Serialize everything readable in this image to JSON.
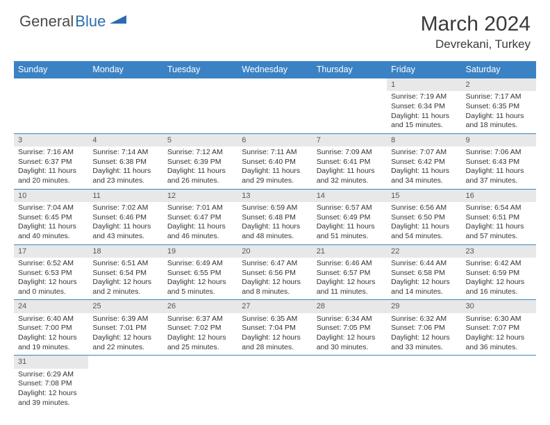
{
  "logo": {
    "part1": "General",
    "part2": "Blue"
  },
  "header": {
    "title": "March 2024",
    "location": "Devrekani, Turkey"
  },
  "colors": {
    "header_bg": "#3b82c4",
    "header_text": "#ffffff",
    "daynum_bg": "#e8e8e8",
    "border": "#3b82c4",
    "text": "#333333",
    "logo_gray": "#4a4a4a",
    "logo_blue": "#2b6cb0"
  },
  "weekdays": [
    "Sunday",
    "Monday",
    "Tuesday",
    "Wednesday",
    "Thursday",
    "Friday",
    "Saturday"
  ],
  "weeks": [
    [
      {
        "empty": true
      },
      {
        "empty": true
      },
      {
        "empty": true
      },
      {
        "empty": true
      },
      {
        "empty": true
      },
      {
        "day": "1",
        "sunrise": "Sunrise: 7:19 AM",
        "sunset": "Sunset: 6:34 PM",
        "daylight1": "Daylight: 11 hours",
        "daylight2": "and 15 minutes."
      },
      {
        "day": "2",
        "sunrise": "Sunrise: 7:17 AM",
        "sunset": "Sunset: 6:35 PM",
        "daylight1": "Daylight: 11 hours",
        "daylight2": "and 18 minutes."
      }
    ],
    [
      {
        "day": "3",
        "sunrise": "Sunrise: 7:16 AM",
        "sunset": "Sunset: 6:37 PM",
        "daylight1": "Daylight: 11 hours",
        "daylight2": "and 20 minutes."
      },
      {
        "day": "4",
        "sunrise": "Sunrise: 7:14 AM",
        "sunset": "Sunset: 6:38 PM",
        "daylight1": "Daylight: 11 hours",
        "daylight2": "and 23 minutes."
      },
      {
        "day": "5",
        "sunrise": "Sunrise: 7:12 AM",
        "sunset": "Sunset: 6:39 PM",
        "daylight1": "Daylight: 11 hours",
        "daylight2": "and 26 minutes."
      },
      {
        "day": "6",
        "sunrise": "Sunrise: 7:11 AM",
        "sunset": "Sunset: 6:40 PM",
        "daylight1": "Daylight: 11 hours",
        "daylight2": "and 29 minutes."
      },
      {
        "day": "7",
        "sunrise": "Sunrise: 7:09 AM",
        "sunset": "Sunset: 6:41 PM",
        "daylight1": "Daylight: 11 hours",
        "daylight2": "and 32 minutes."
      },
      {
        "day": "8",
        "sunrise": "Sunrise: 7:07 AM",
        "sunset": "Sunset: 6:42 PM",
        "daylight1": "Daylight: 11 hours",
        "daylight2": "and 34 minutes."
      },
      {
        "day": "9",
        "sunrise": "Sunrise: 7:06 AM",
        "sunset": "Sunset: 6:43 PM",
        "daylight1": "Daylight: 11 hours",
        "daylight2": "and 37 minutes."
      }
    ],
    [
      {
        "day": "10",
        "sunrise": "Sunrise: 7:04 AM",
        "sunset": "Sunset: 6:45 PM",
        "daylight1": "Daylight: 11 hours",
        "daylight2": "and 40 minutes."
      },
      {
        "day": "11",
        "sunrise": "Sunrise: 7:02 AM",
        "sunset": "Sunset: 6:46 PM",
        "daylight1": "Daylight: 11 hours",
        "daylight2": "and 43 minutes."
      },
      {
        "day": "12",
        "sunrise": "Sunrise: 7:01 AM",
        "sunset": "Sunset: 6:47 PM",
        "daylight1": "Daylight: 11 hours",
        "daylight2": "and 46 minutes."
      },
      {
        "day": "13",
        "sunrise": "Sunrise: 6:59 AM",
        "sunset": "Sunset: 6:48 PM",
        "daylight1": "Daylight: 11 hours",
        "daylight2": "and 48 minutes."
      },
      {
        "day": "14",
        "sunrise": "Sunrise: 6:57 AM",
        "sunset": "Sunset: 6:49 PM",
        "daylight1": "Daylight: 11 hours",
        "daylight2": "and 51 minutes."
      },
      {
        "day": "15",
        "sunrise": "Sunrise: 6:56 AM",
        "sunset": "Sunset: 6:50 PM",
        "daylight1": "Daylight: 11 hours",
        "daylight2": "and 54 minutes."
      },
      {
        "day": "16",
        "sunrise": "Sunrise: 6:54 AM",
        "sunset": "Sunset: 6:51 PM",
        "daylight1": "Daylight: 11 hours",
        "daylight2": "and 57 minutes."
      }
    ],
    [
      {
        "day": "17",
        "sunrise": "Sunrise: 6:52 AM",
        "sunset": "Sunset: 6:53 PM",
        "daylight1": "Daylight: 12 hours",
        "daylight2": "and 0 minutes."
      },
      {
        "day": "18",
        "sunrise": "Sunrise: 6:51 AM",
        "sunset": "Sunset: 6:54 PM",
        "daylight1": "Daylight: 12 hours",
        "daylight2": "and 2 minutes."
      },
      {
        "day": "19",
        "sunrise": "Sunrise: 6:49 AM",
        "sunset": "Sunset: 6:55 PM",
        "daylight1": "Daylight: 12 hours",
        "daylight2": "and 5 minutes."
      },
      {
        "day": "20",
        "sunrise": "Sunrise: 6:47 AM",
        "sunset": "Sunset: 6:56 PM",
        "daylight1": "Daylight: 12 hours",
        "daylight2": "and 8 minutes."
      },
      {
        "day": "21",
        "sunrise": "Sunrise: 6:46 AM",
        "sunset": "Sunset: 6:57 PM",
        "daylight1": "Daylight: 12 hours",
        "daylight2": "and 11 minutes."
      },
      {
        "day": "22",
        "sunrise": "Sunrise: 6:44 AM",
        "sunset": "Sunset: 6:58 PM",
        "daylight1": "Daylight: 12 hours",
        "daylight2": "and 14 minutes."
      },
      {
        "day": "23",
        "sunrise": "Sunrise: 6:42 AM",
        "sunset": "Sunset: 6:59 PM",
        "daylight1": "Daylight: 12 hours",
        "daylight2": "and 16 minutes."
      }
    ],
    [
      {
        "day": "24",
        "sunrise": "Sunrise: 6:40 AM",
        "sunset": "Sunset: 7:00 PM",
        "daylight1": "Daylight: 12 hours",
        "daylight2": "and 19 minutes."
      },
      {
        "day": "25",
        "sunrise": "Sunrise: 6:39 AM",
        "sunset": "Sunset: 7:01 PM",
        "daylight1": "Daylight: 12 hours",
        "daylight2": "and 22 minutes."
      },
      {
        "day": "26",
        "sunrise": "Sunrise: 6:37 AM",
        "sunset": "Sunset: 7:02 PM",
        "daylight1": "Daylight: 12 hours",
        "daylight2": "and 25 minutes."
      },
      {
        "day": "27",
        "sunrise": "Sunrise: 6:35 AM",
        "sunset": "Sunset: 7:04 PM",
        "daylight1": "Daylight: 12 hours",
        "daylight2": "and 28 minutes."
      },
      {
        "day": "28",
        "sunrise": "Sunrise: 6:34 AM",
        "sunset": "Sunset: 7:05 PM",
        "daylight1": "Daylight: 12 hours",
        "daylight2": "and 30 minutes."
      },
      {
        "day": "29",
        "sunrise": "Sunrise: 6:32 AM",
        "sunset": "Sunset: 7:06 PM",
        "daylight1": "Daylight: 12 hours",
        "daylight2": "and 33 minutes."
      },
      {
        "day": "30",
        "sunrise": "Sunrise: 6:30 AM",
        "sunset": "Sunset: 7:07 PM",
        "daylight1": "Daylight: 12 hours",
        "daylight2": "and 36 minutes."
      }
    ],
    [
      {
        "day": "31",
        "sunrise": "Sunrise: 6:29 AM",
        "sunset": "Sunset: 7:08 PM",
        "daylight1": "Daylight: 12 hours",
        "daylight2": "and 39 minutes."
      },
      {
        "empty": true
      },
      {
        "empty": true
      },
      {
        "empty": true
      },
      {
        "empty": true
      },
      {
        "empty": true
      },
      {
        "empty": true
      }
    ]
  ]
}
